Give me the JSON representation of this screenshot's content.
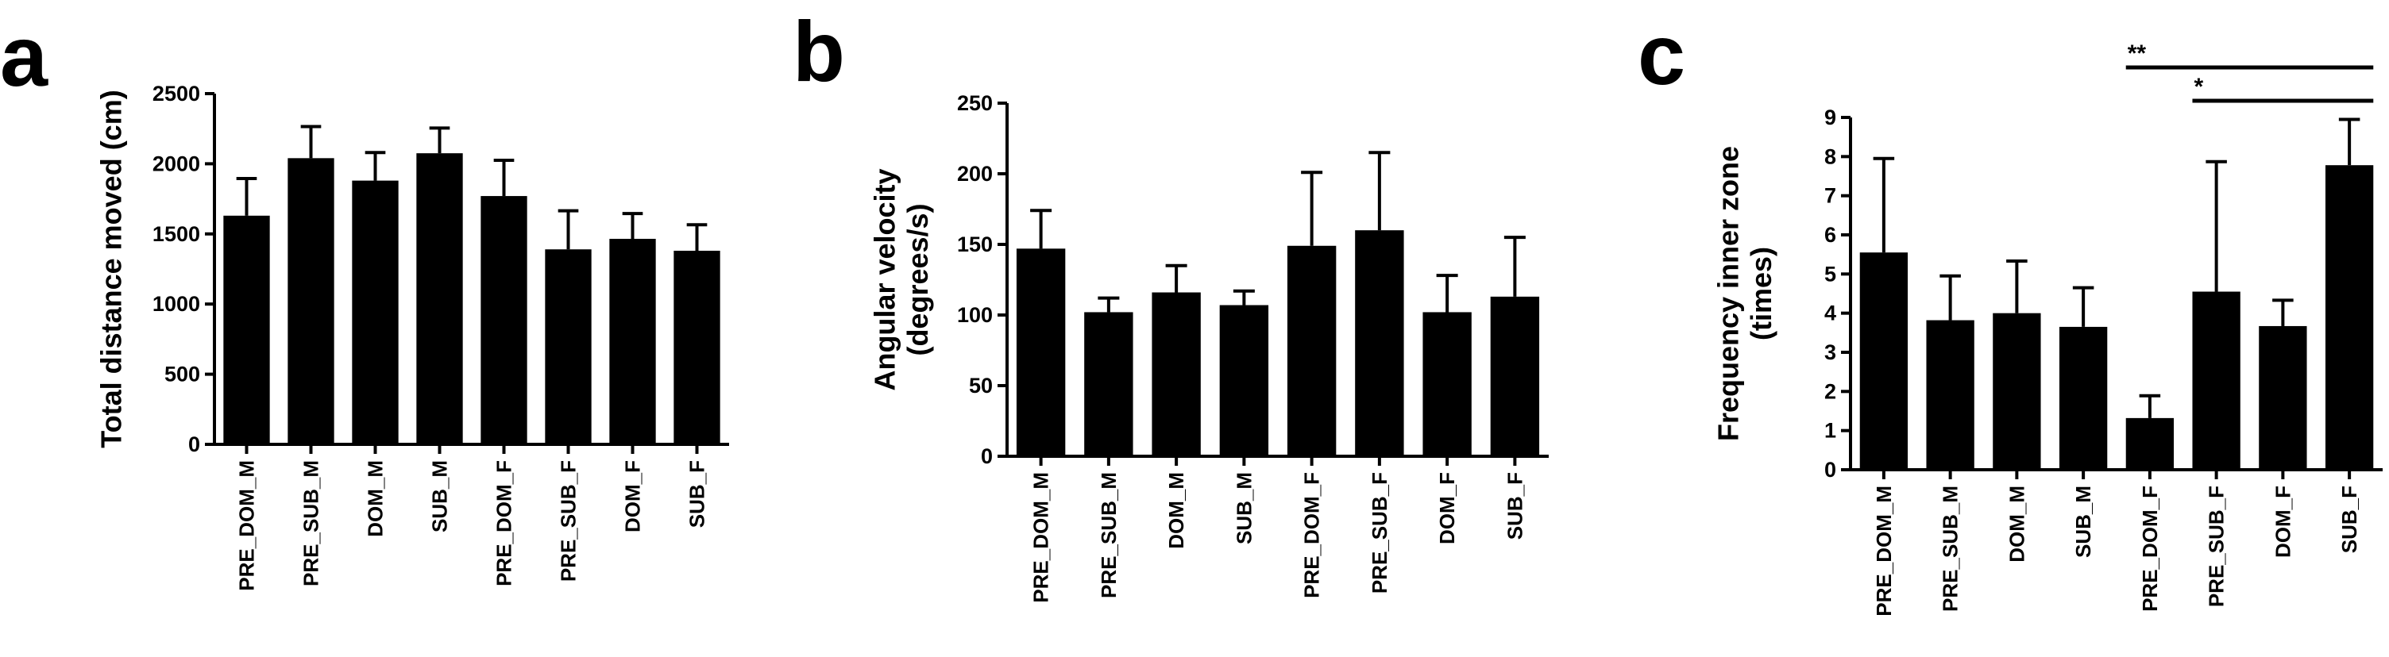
{
  "chart_data": [
    {
      "type": "bar",
      "panel_label": "a",
      "categories": [
        "PRE_DOM_M",
        "PRE_SUB_M",
        "DOM_M",
        "SUB_M",
        "PRE_DOM_F",
        "PRE_SUB_F",
        "DOM_F",
        "SUB_F"
      ],
      "values": [
        1630,
        2040,
        1880,
        2075,
        1770,
        1390,
        1465,
        1380
      ],
      "errors": [
        265,
        225,
        200,
        180,
        255,
        275,
        180,
        185
      ],
      "ylabel": "Total distance moved  (cm)",
      "ylim": [
        0,
        2500
      ],
      "yticks": [
        0,
        500,
        1000,
        1500,
        2000,
        2500
      ],
      "error_bars": "upper",
      "grid": false,
      "color": "#000000",
      "significance": []
    },
    {
      "type": "bar",
      "panel_label": "b",
      "categories": [
        "PRE_DOM_M",
        "PRE_SUB_M",
        "DOM_M",
        "SUB_M",
        "PRE_DOM_F",
        "PRE_SUB_F",
        "DOM_F",
        "SUB_F"
      ],
      "values": [
        147,
        102,
        116,
        107,
        149,
        160,
        102,
        113
      ],
      "errors": [
        27,
        10,
        19,
        10,
        52,
        55,
        26,
        42
      ],
      "ylabel": "Angular velocity\n(degrees/s)",
      "ylim": [
        0,
        250
      ],
      "yticks": [
        0,
        50,
        100,
        150,
        200,
        250
      ],
      "error_bars": "upper",
      "grid": false,
      "color": "#000000",
      "significance": []
    },
    {
      "type": "bar",
      "panel_label": "c",
      "categories": [
        "PRE_DOM_M",
        "PRE_SUB_M",
        "DOM_M",
        "SUB_M",
        "PRE_DOM_F",
        "PRE_SUB_F",
        "DOM_F",
        "SUB_F"
      ],
      "values": [
        5.55,
        3.82,
        4.0,
        3.65,
        1.32,
        4.55,
        3.67,
        7.78
      ],
      "errors": [
        2.4,
        1.13,
        1.33,
        1.0,
        0.57,
        3.32,
        0.66,
        1.17
      ],
      "ylabel": "Frequency inner zone\n(times)",
      "ylim": [
        0,
        9
      ],
      "yticks": [
        0,
        1,
        2,
        3,
        4,
        5,
        6,
        7,
        8,
        9
      ],
      "error_bars": "upper",
      "grid": false,
      "color": "#000000",
      "significance": [
        {
          "from": "PRE_DOM_F",
          "to": "SUB_F",
          "label": "**"
        },
        {
          "from": "PRE_SUB_F",
          "to": "SUB_F",
          "label": "*"
        }
      ]
    }
  ]
}
